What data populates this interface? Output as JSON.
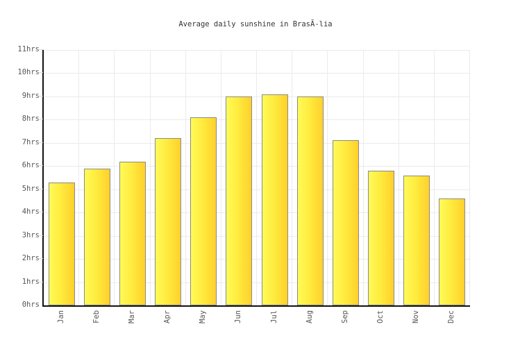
{
  "chart_data": {
    "type": "bar",
    "title": "Average daily sunshine in BrasÃ-lia",
    "categories": [
      "Jan",
      "Feb",
      "Mar",
      "Apr",
      "May",
      "Jun",
      "Jul",
      "Aug",
      "Sep",
      "Oct",
      "Nov",
      "Dec"
    ],
    "values": [
      5.3,
      5.9,
      6.2,
      7.2,
      8.1,
      9.0,
      9.1,
      9.0,
      7.1,
      5.8,
      5.6,
      4.6
    ],
    "unit": "hrs",
    "y_ticks": [
      "0hrs",
      "1hrs",
      "2hrs",
      "3hrs",
      "4hrs",
      "5hrs",
      "6hrs",
      "7hrs",
      "8hrs",
      "9hrs",
      "10hrs",
      "11hrs"
    ],
    "ylim": [
      0,
      11
    ],
    "xlabel": "",
    "ylabel": "",
    "grid": true,
    "legend": false,
    "colors": {
      "bar_fill_start": "#FFFA58",
      "bar_fill_mid": "#FFEC3F",
      "bar_fill_end": "#FFD02C",
      "bar_border": "#8A8A8A",
      "gridline": "#EBEBEB",
      "axis": "#111111",
      "tick_mark": "#D9D9D9",
      "tick_label": "#555555",
      "title": "#333333",
      "background": "#FFFFFF"
    }
  }
}
